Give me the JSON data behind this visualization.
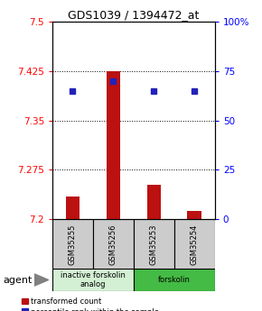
{
  "title": "GDS1039 / 1394472_at",
  "samples": [
    "GSM35255",
    "GSM35256",
    "GSM35253",
    "GSM35254"
  ],
  "bar_values": [
    7.235,
    7.425,
    7.252,
    7.212
  ],
  "blue_values": [
    65,
    70,
    65,
    65
  ],
  "ylim_left": [
    7.2,
    7.5
  ],
  "ylim_right": [
    0,
    100
  ],
  "left_ticks": [
    7.2,
    7.275,
    7.35,
    7.425,
    7.5
  ],
  "right_ticks": [
    0,
    25,
    50,
    75,
    100
  ],
  "right_tick_labels": [
    "0",
    "25",
    "50",
    "75",
    "100%"
  ],
  "bar_color": "#bb1111",
  "blue_color": "#2222bb",
  "groups": [
    {
      "label": "inactive forskolin\nanalog",
      "samples": [
        0,
        1
      ],
      "color": "#d4f0d4"
    },
    {
      "label": "forskolin",
      "samples": [
        2,
        3
      ],
      "color": "#44bb44"
    }
  ],
  "legend_red": "transformed count",
  "legend_blue": "percentile rank within the sample",
  "agent_label": "agent",
  "gray_box_color": "#cccccc"
}
